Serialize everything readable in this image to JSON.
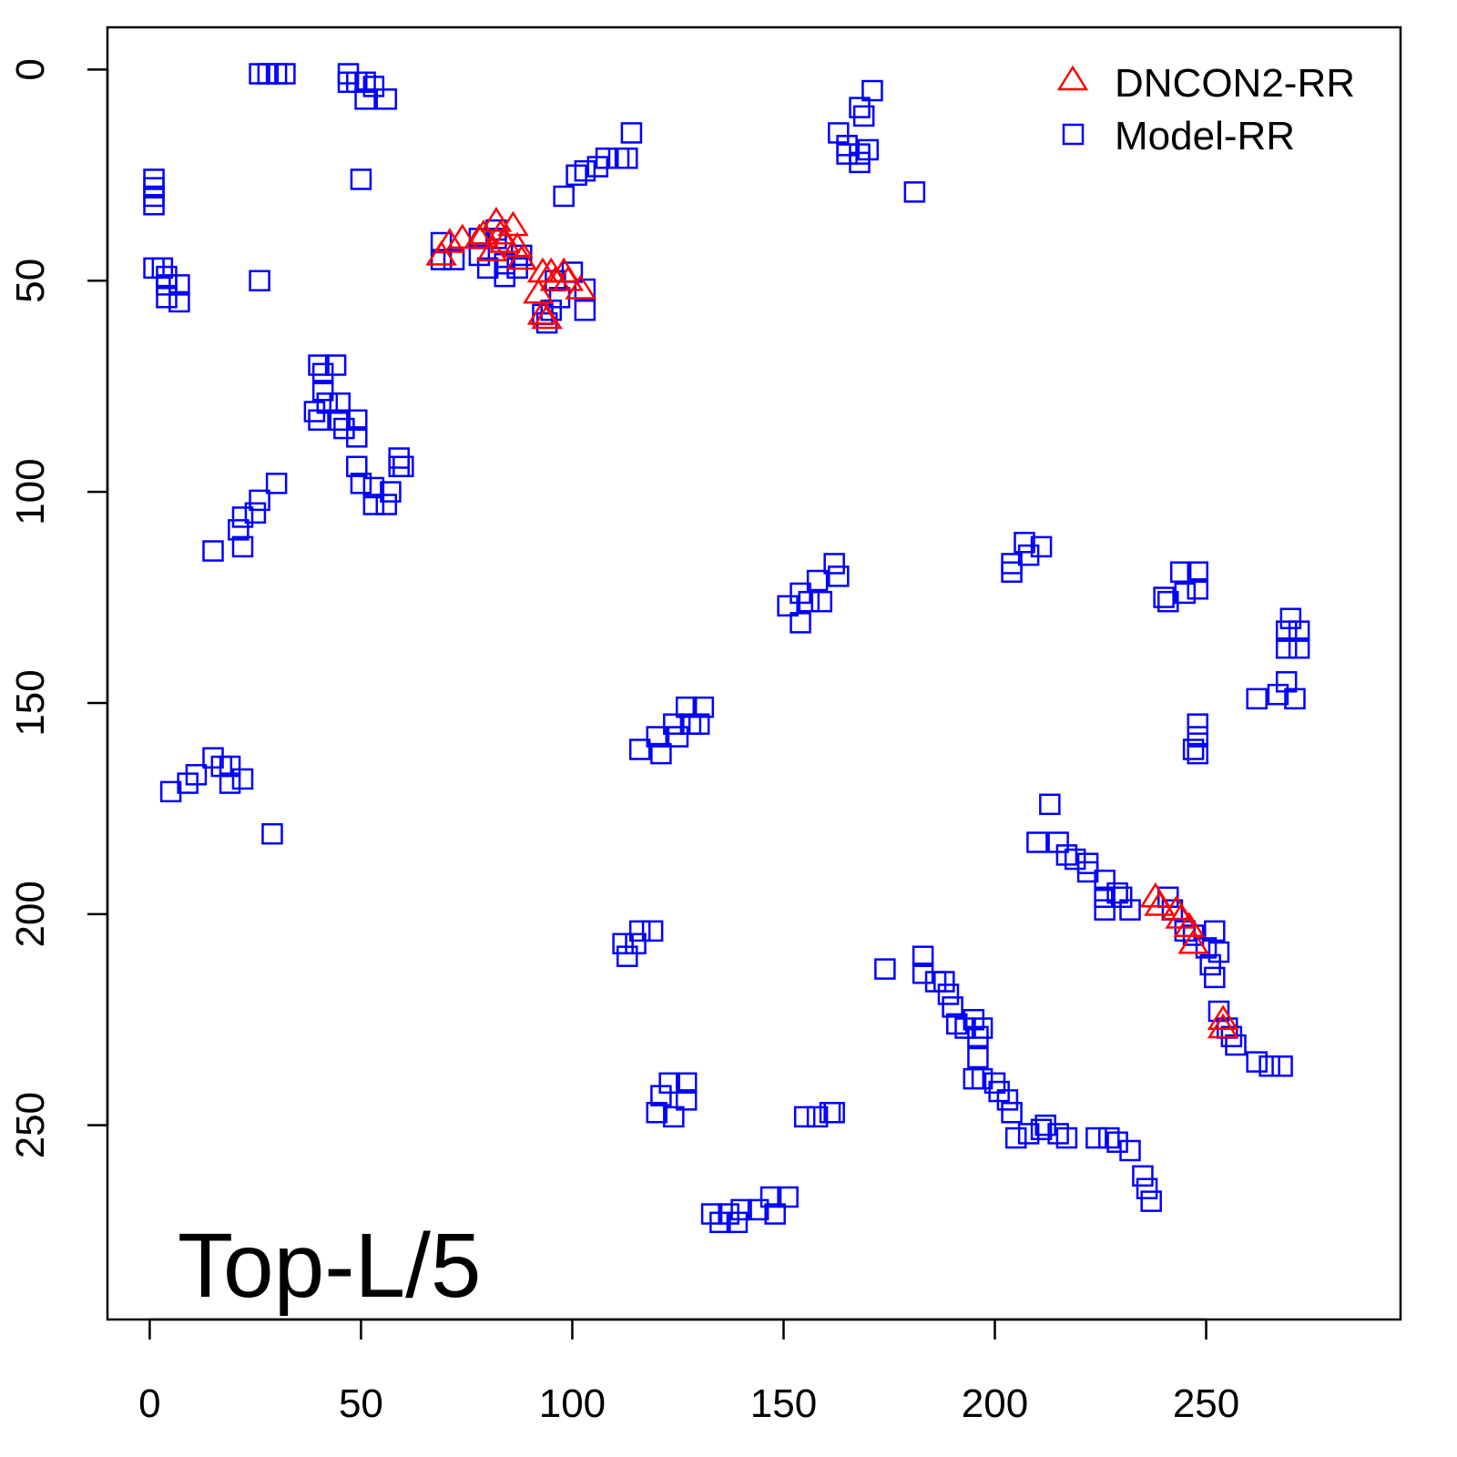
{
  "chart_data": {
    "type": "scatter",
    "title": "",
    "annotation": "Top-L/5",
    "xlabel": "",
    "ylabel": "",
    "xlim": [
      -10,
      296
    ],
    "ylim": [
      296,
      -10
    ],
    "y_inverted": true,
    "grid": false,
    "legend_position": "top-right",
    "xticks": [
      0,
      50,
      100,
      150,
      200,
      250
    ],
    "yticks": [
      0,
      50,
      100,
      150,
      200,
      250
    ],
    "xtick_labels": [
      "0",
      "50",
      "100",
      "150",
      "200",
      "250"
    ],
    "ytick_labels": [
      "0",
      "50",
      "100",
      "150",
      "200",
      "250"
    ],
    "series": [
      {
        "name": "DNCON2-RR",
        "marker": "triangle",
        "color": "#ff0000",
        "points": [
          [
            69,
            44
          ],
          [
            71,
            41
          ],
          [
            74,
            40
          ],
          [
            78,
            40
          ],
          [
            79,
            39
          ],
          [
            82,
            36
          ],
          [
            83,
            39
          ],
          [
            84,
            41
          ],
          [
            86,
            37
          ],
          [
            87,
            42
          ],
          [
            88,
            45
          ],
          [
            81,
            43
          ],
          [
            93,
            48
          ],
          [
            95,
            48
          ],
          [
            98,
            48
          ],
          [
            96,
            50
          ],
          [
            99,
            50
          ],
          [
            102,
            52
          ],
          [
            93,
            58
          ],
          [
            94,
            59
          ],
          [
            92,
            53
          ],
          [
            238,
            196
          ],
          [
            239,
            198
          ],
          [
            243,
            199
          ],
          [
            244,
            201
          ],
          [
            246,
            203
          ],
          [
            247,
            207
          ],
          [
            254,
            225
          ],
          [
            254,
            227
          ]
        ]
      },
      {
        "name": "Model-RR",
        "marker": "square",
        "color": "#0000ff",
        "points": [
          [
            1,
            26
          ],
          [
            1,
            28
          ],
          [
            1,
            30
          ],
          [
            1,
            32
          ],
          [
            26,
            1
          ],
          [
            28,
            1
          ],
          [
            30,
            1
          ],
          [
            32,
            1
          ],
          [
            47,
            1
          ],
          [
            47,
            3
          ],
          [
            49,
            3
          ],
          [
            51,
            3
          ],
          [
            53,
            4
          ],
          [
            56,
            7
          ],
          [
            51,
            7
          ],
          [
            50,
            26
          ],
          [
            1,
            47
          ],
          [
            3,
            47
          ],
          [
            4,
            49
          ],
          [
            4,
            51
          ],
          [
            7,
            51
          ],
          [
            7,
            55
          ],
          [
            4,
            54
          ],
          [
            26,
            50
          ],
          [
            69,
            41
          ],
          [
            69,
            45
          ],
          [
            72,
            45
          ],
          [
            78,
            44
          ],
          [
            78,
            40
          ],
          [
            82,
            40
          ],
          [
            82,
            38
          ],
          [
            84,
            46
          ],
          [
            87,
            47
          ],
          [
            88,
            44
          ],
          [
            84,
            49
          ],
          [
            80,
            47
          ],
          [
            93,
            58
          ],
          [
            94,
            60
          ],
          [
            95,
            57
          ],
          [
            97,
            54
          ],
          [
            103,
            52
          ],
          [
            103,
            57
          ],
          [
            96,
            50
          ],
          [
            100,
            48
          ],
          [
            98,
            30
          ],
          [
            101,
            25
          ],
          [
            103,
            24
          ],
          [
            106,
            23
          ],
          [
            108,
            21
          ],
          [
            111,
            21
          ],
          [
            113,
            21
          ],
          [
            114,
            15
          ],
          [
            163,
            15
          ],
          [
            165,
            18
          ],
          [
            165,
            20
          ],
          [
            168,
            20
          ],
          [
            170,
            19
          ],
          [
            168,
            22
          ],
          [
            168,
            9
          ],
          [
            169,
            11
          ],
          [
            171,
            5
          ],
          [
            181,
            29
          ],
          [
            40,
            70
          ],
          [
            41,
            72
          ],
          [
            41,
            76
          ],
          [
            39,
            81
          ],
          [
            40,
            83
          ],
          [
            42,
            79
          ],
          [
            45,
            79
          ],
          [
            44,
            70
          ],
          [
            45,
            83
          ],
          [
            46,
            85
          ],
          [
            49,
            87
          ],
          [
            49,
            83
          ],
          [
            49,
            94
          ],
          [
            50,
            98
          ],
          [
            53,
            99
          ],
          [
            53,
            103
          ],
          [
            56,
            103
          ],
          [
            57,
            100
          ],
          [
            59,
            94
          ],
          [
            59,
            92
          ],
          [
            60,
            94
          ],
          [
            30,
            98
          ],
          [
            26,
            102
          ],
          [
            25,
            105
          ],
          [
            22,
            106
          ],
          [
            21,
            109
          ],
          [
            22,
            113
          ],
          [
            15,
            114
          ],
          [
            5,
            171
          ],
          [
            9,
            169
          ],
          [
            11,
            167
          ],
          [
            15,
            163
          ],
          [
            17,
            165
          ],
          [
            19,
            165
          ],
          [
            19,
            169
          ],
          [
            22,
            168
          ],
          [
            29,
            181
          ],
          [
            151,
            127
          ],
          [
            154,
            124
          ],
          [
            154,
            131
          ],
          [
            156,
            126
          ],
          [
            158,
            121
          ],
          [
            159,
            126
          ],
          [
            162,
            117
          ],
          [
            163,
            120
          ],
          [
            116,
            161
          ],
          [
            120,
            158
          ],
          [
            121,
            162
          ],
          [
            124,
            155
          ],
          [
            125,
            158
          ],
          [
            127,
            151
          ],
          [
            128,
            155
          ],
          [
            130,
            155
          ],
          [
            131,
            151
          ],
          [
            112,
            207
          ],
          [
            113,
            210
          ],
          [
            115,
            207
          ],
          [
            116,
            204
          ],
          [
            119,
            204
          ],
          [
            120,
            247
          ],
          [
            121,
            243
          ],
          [
            123,
            240
          ],
          [
            124,
            248
          ],
          [
            127,
            240
          ],
          [
            127,
            244
          ],
          [
            133,
            271
          ],
          [
            135,
            273
          ],
          [
            137,
            271
          ],
          [
            139,
            273
          ],
          [
            140,
            270
          ],
          [
            144,
            270
          ],
          [
            147,
            267
          ],
          [
            148,
            271
          ],
          [
            151,
            267
          ],
          [
            155,
            248
          ],
          [
            158,
            248
          ],
          [
            161,
            247
          ],
          [
            162,
            247
          ],
          [
            174,
            213
          ],
          [
            204,
            117
          ],
          [
            204,
            119
          ],
          [
            207,
            112
          ],
          [
            208,
            115
          ],
          [
            211,
            113
          ],
          [
            213,
            174
          ],
          [
            210,
            183
          ],
          [
            215,
            183
          ],
          [
            217,
            186
          ],
          [
            219,
            187
          ],
          [
            222,
            188
          ],
          [
            222,
            190
          ],
          [
            226,
            192
          ],
          [
            226,
            196
          ],
          [
            226,
            199
          ],
          [
            229,
            195
          ],
          [
            230,
            196
          ],
          [
            232,
            199
          ],
          [
            183,
            210
          ],
          [
            183,
            214
          ],
          [
            186,
            216
          ],
          [
            188,
            216
          ],
          [
            189,
            219
          ],
          [
            190,
            222
          ],
          [
            191,
            226
          ],
          [
            193,
            227
          ],
          [
            195,
            225
          ],
          [
            196,
            229
          ],
          [
            197,
            227
          ],
          [
            196,
            234
          ],
          [
            195,
            239
          ],
          [
            197,
            239
          ],
          [
            200,
            240
          ],
          [
            201,
            242
          ],
          [
            203,
            244
          ],
          [
            204,
            247
          ],
          [
            205,
            253
          ],
          [
            208,
            252
          ],
          [
            211,
            251
          ],
          [
            212,
            250
          ],
          [
            215,
            252
          ],
          [
            217,
            253
          ],
          [
            224,
            253
          ],
          [
            227,
            253
          ],
          [
            229,
            254
          ],
          [
            232,
            256
          ],
          [
            235,
            262
          ],
          [
            236,
            265
          ],
          [
            237,
            268
          ],
          [
            240,
            125
          ],
          [
            241,
            126
          ],
          [
            244,
            119
          ],
          [
            245,
            124
          ],
          [
            248,
            119
          ],
          [
            248,
            123
          ],
          [
            270,
            130
          ],
          [
            269,
            133
          ],
          [
            272,
            133
          ],
          [
            269,
            137
          ],
          [
            272,
            137
          ],
          [
            269,
            145
          ],
          [
            267,
            148
          ],
          [
            271,
            149
          ],
          [
            262,
            149
          ],
          [
            248,
            155
          ],
          [
            248,
            158
          ],
          [
            247,
            161
          ],
          [
            248,
            162
          ],
          [
            241,
            196
          ],
          [
            242,
            199
          ],
          [
            245,
            204
          ],
          [
            247,
            205
          ],
          [
            250,
            208
          ],
          [
            252,
            204
          ],
          [
            253,
            209
          ],
          [
            251,
            212
          ],
          [
            252,
            215
          ],
          [
            253,
            223
          ],
          [
            255,
            227
          ],
          [
            256,
            229
          ],
          [
            257,
            231
          ],
          [
            262,
            235
          ],
          [
            265,
            236
          ],
          [
            268,
            236
          ]
        ]
      }
    ]
  }
}
